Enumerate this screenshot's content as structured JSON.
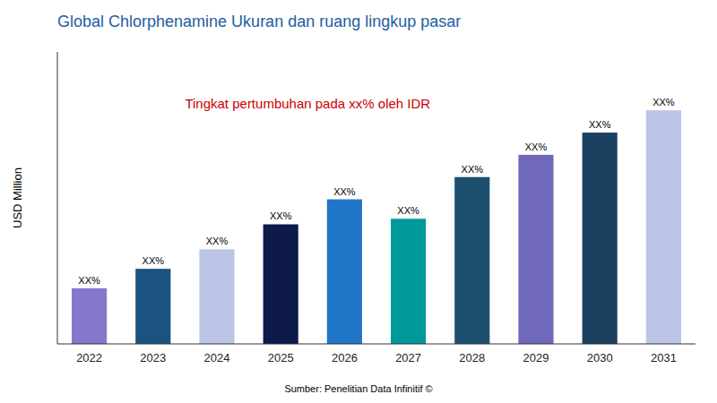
{
  "chart_data": {
    "type": "bar",
    "title": "Global Chlorphenamine Ukuran dan ruang lingkup pasar",
    "y_label": "USD Million",
    "annotation": "Tingkat pertumbuhan pada xx% oleh IDR",
    "source": "Sumber: Penelitian Data Infinitif ©",
    "categories": [
      "2022",
      "2023",
      "2024",
      "2025",
      "2026",
      "2027",
      "2028",
      "2029",
      "2030",
      "2031"
    ],
    "values": [
      20,
      27,
      34,
      43,
      52,
      45,
      60,
      68,
      76,
      84
    ],
    "value_labels": [
      "XX%",
      "XX%",
      "XX%",
      "XX%",
      "XX%",
      "XX%",
      "XX%",
      "XX%",
      "XX%",
      "XX%"
    ],
    "data_labels": true,
    "colors": [
      "#8478CC",
      "#1C5280",
      "#BCC4E8",
      "#0D1A4A",
      "#2176C8",
      "#009999",
      "#1C4F6E",
      "#7068BB",
      "#1C4060",
      "#BCC4E8"
    ],
    "ylim": [
      0,
      105
    ],
    "tick_labels": "x",
    "grid": false
  }
}
